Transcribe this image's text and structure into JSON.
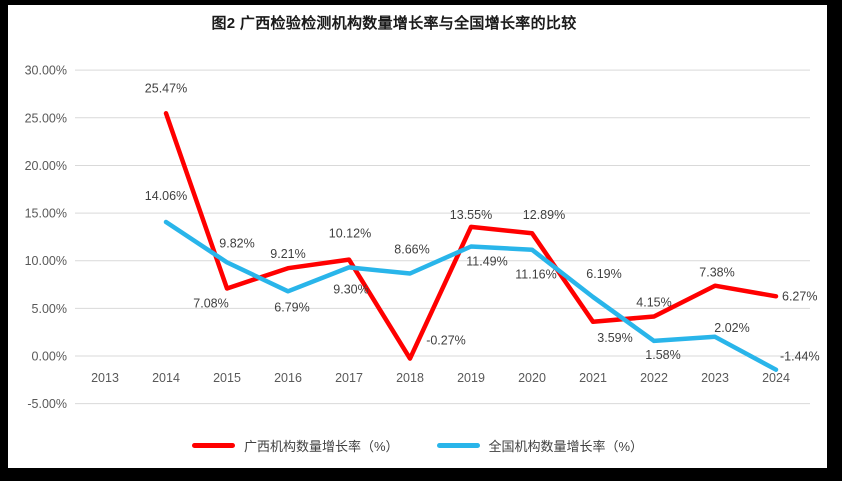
{
  "title": "图2 广西检验检测机构数量增长率与全国增长率的比较",
  "colors": {
    "frame_border": "#000000",
    "canvas_background": "#ffffff",
    "gridline": "#d9d9d9",
    "axis_text": "#595959",
    "data_label_text": "#404040",
    "series_guangxi": "#ff0000",
    "series_national": "#29b5ea"
  },
  "chart_data": {
    "type": "line",
    "title": "图2 广西检验检测机构数量增长率与全国增长率的比较",
    "x": [
      "2013",
      "2014",
      "2015",
      "2016",
      "2017",
      "2018",
      "2019",
      "2020",
      "2021",
      "2022",
      "2023",
      "2024"
    ],
    "ylim": [
      -5,
      30
    ],
    "ytick_step": 5,
    "ytick_labels": [
      "30.00%",
      "25.00%",
      "20.00%",
      "15.00%",
      "10.00%",
      "5.00%",
      "0.00%",
      "-5.00%"
    ],
    "grid": true,
    "legend_position": "bottom",
    "series": [
      {
        "name": "广西机构数量增长率（%）",
        "color": "#ff0000",
        "values": [
          null,
          25.47,
          7.08,
          9.21,
          10.12,
          -0.27,
          13.55,
          12.89,
          3.59,
          4.15,
          7.38,
          6.27
        ],
        "labels": [
          null,
          "25.47%",
          "7.08%",
          "9.21%",
          "10.12%",
          "-0.27%",
          "13.55%",
          "12.89%",
          "3.59%",
          "4.15%",
          "7.38%",
          "6.27%"
        ],
        "label_offsets": [
          null,
          [
            0,
            -21
          ],
          [
            -16,
            19
          ],
          [
            0,
            -10
          ],
          [
            1,
            -22
          ],
          [
            36,
            -14
          ],
          [
            0,
            -8
          ],
          [
            12,
            -14
          ],
          [
            22,
            20
          ],
          [
            0,
            -10
          ],
          [
            2,
            -9
          ],
          [
            6,
            4,
            "start"
          ]
        ]
      },
      {
        "name": "全国机构数量增长率（%）",
        "color": "#29b5ea",
        "values": [
          null,
          14.06,
          9.82,
          6.79,
          9.3,
          8.66,
          11.49,
          11.16,
          6.19,
          1.58,
          2.02,
          -1.44
        ],
        "labels": [
          null,
          "14.06%",
          "9.82%",
          "6.79%",
          "9.30%",
          "8.66%",
          "11.49%",
          "11.16%",
          "6.19%",
          "1.58%",
          "2.02%",
          "-1.44%"
        ],
        "label_offsets": [
          null,
          [
            0,
            -22
          ],
          [
            10,
            -15
          ],
          [
            4,
            20
          ],
          [
            2,
            26
          ],
          [
            2,
            -20
          ],
          [
            16,
            19
          ],
          [
            4,
            29
          ],
          [
            11,
            -19
          ],
          [
            9,
            18
          ],
          [
            17,
            -5
          ],
          [
            4,
            -9,
            "start"
          ]
        ]
      }
    ]
  }
}
